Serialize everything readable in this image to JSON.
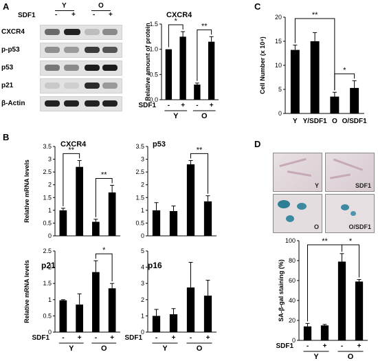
{
  "panels": {
    "A": "A",
    "B": "B",
    "C": "C",
    "D": "D"
  },
  "western": {
    "header_groups": [
      "Y",
      "O"
    ],
    "sdf1_label": "SDF1",
    "sdf1_marks": [
      "-",
      "+",
      "-",
      "+"
    ],
    "rows": [
      {
        "label": "CXCR4"
      },
      {
        "label": "p-p53"
      },
      {
        "label": "p53"
      },
      {
        "label": "p21"
      },
      {
        "label": "β-Actin"
      }
    ]
  },
  "axis_common": {
    "sdf1": "SDF1",
    "minus": "-",
    "plus": "+",
    "y": "Y",
    "o": "O"
  },
  "chart_data": [
    {
      "id": "A-right",
      "type": "bar",
      "title": "CXCR4",
      "ylabel": "Relative amount of protein",
      "ylim": [
        0,
        1.5
      ],
      "yticks": [
        "0.0",
        "0.5",
        "1.0",
        "1.5"
      ],
      "categories": [
        "Y -",
        "Y +",
        "O -",
        "O +"
      ],
      "values": [
        1.0,
        1.25,
        0.3,
        1.15
      ],
      "errors": [
        0,
        0.1,
        0.03,
        0.1
      ],
      "significance": [
        {
          "from": 0,
          "to": 1,
          "label": "*"
        },
        {
          "from": 2,
          "to": 3,
          "label": "**"
        }
      ]
    },
    {
      "id": "C",
      "type": "bar",
      "title": "",
      "ylabel": "Cell Number (x 10⁴)",
      "ylim": [
        0,
        20
      ],
      "yticks": [
        "0",
        "5",
        "10",
        "15",
        "20"
      ],
      "categories": [
        "Y",
        "Y/SDF1",
        "O",
        "O/SDF1"
      ],
      "values": [
        13.2,
        15.0,
        3.5,
        5.3
      ],
      "errors": [
        1.0,
        1.8,
        0.9,
        1.5
      ],
      "significance": [
        {
          "from": 0,
          "to": 2,
          "label": "**"
        },
        {
          "from": 2,
          "to": 3,
          "label": "*"
        }
      ]
    },
    {
      "id": "B-CXCR4",
      "type": "bar",
      "title": "CXCR4",
      "ylabel": "Relative mRNA levels",
      "ylim": [
        0,
        3.5
      ],
      "yticks": [
        "0",
        "0.5",
        "1",
        "1.5",
        "2",
        "2.5",
        "3",
        "3.5"
      ],
      "categories": [
        "Y -",
        "Y +",
        "O -",
        "O +"
      ],
      "values": [
        1.0,
        2.7,
        0.55,
        1.7
      ],
      "errors": [
        0.08,
        0.25,
        0.1,
        0.28
      ],
      "significance": [
        {
          "from": 0,
          "to": 1,
          "label": "**"
        },
        {
          "from": 2,
          "to": 3,
          "label": "**"
        }
      ]
    },
    {
      "id": "B-p53",
      "type": "bar",
      "title": "p53",
      "ylabel": "",
      "ylim": [
        0,
        3.5
      ],
      "yticks": [
        "0",
        "0.5",
        "1",
        "1.5",
        "2",
        "2.5",
        "3",
        "3.5"
      ],
      "categories": [
        "Y -",
        "Y +",
        "O -",
        "O +"
      ],
      "values": [
        1.0,
        0.97,
        2.8,
        1.35
      ],
      "errors": [
        0.3,
        0.2,
        0.15,
        0.22
      ],
      "significance": [
        {
          "from": 2,
          "to": 3,
          "label": "**"
        }
      ]
    },
    {
      "id": "B-p21",
      "type": "bar",
      "title": "p21",
      "ylabel": "Relative mRNA levels",
      "ylim": [
        0,
        2.5
      ],
      "yticks": [
        "0",
        "0.5",
        "1",
        "1.5",
        "2",
        "2.5"
      ],
      "categories": [
        "Y -",
        "Y +",
        "O -",
        "O +"
      ],
      "values": [
        0.98,
        0.85,
        1.85,
        1.35
      ],
      "errors": [
        0.02,
        0.33,
        0.35,
        0.15
      ],
      "significance": [
        {
          "from": 2,
          "to": 3,
          "label": "*"
        }
      ]
    },
    {
      "id": "B-p16",
      "type": "bar",
      "title": "p16",
      "ylabel": "",
      "ylim": [
        0,
        5
      ],
      "yticks": [
        "0",
        "1",
        "2",
        "3",
        "4",
        "5"
      ],
      "categories": [
        "Y -",
        "Y +",
        "O -",
        "O +"
      ],
      "values": [
        1.0,
        1.1,
        2.75,
        2.25
      ],
      "errors": [
        0.4,
        0.35,
        1.55,
        0.95
      ],
      "significance": []
    },
    {
      "id": "D",
      "type": "bar",
      "title": "",
      "ylabel": "SA-β-gal staining (%)",
      "ylim": [
        0,
        100
      ],
      "yticks": [
        "0",
        "20",
        "40",
        "60",
        "80",
        "100"
      ],
      "categories": [
        "Y -",
        "Y +",
        "O -",
        "O +"
      ],
      "values": [
        14,
        15,
        79,
        59
      ],
      "errors": [
        3,
        1,
        8,
        2
      ],
      "significance": [
        {
          "from": 0,
          "to": 2,
          "label": "**"
        },
        {
          "from": 2,
          "to": 3,
          "label": "*"
        }
      ]
    }
  ],
  "micrographs": [
    {
      "label": "Y"
    },
    {
      "label": "SDF1"
    },
    {
      "label": "O"
    },
    {
      "label": "O/SDF1"
    }
  ]
}
